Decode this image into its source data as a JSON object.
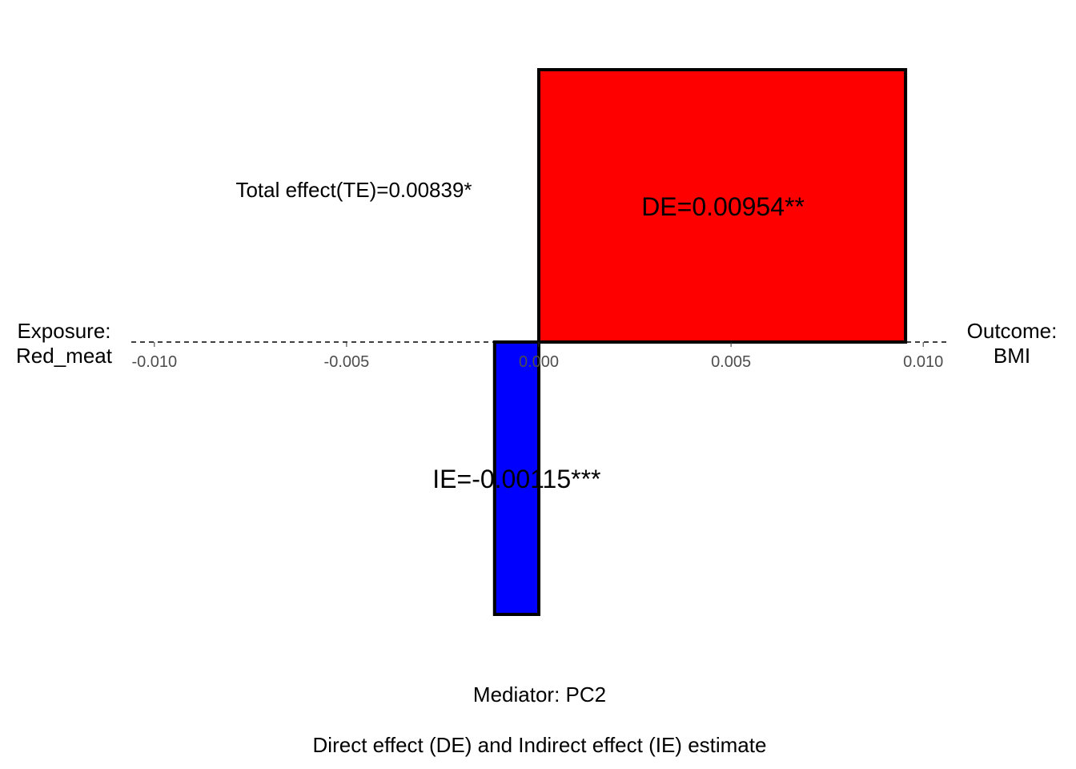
{
  "chart_data": {
    "type": "bar",
    "title": "",
    "x_ticks": [
      "-0.010",
      "-0.005",
      "0.000",
      "0.005",
      "0.010"
    ],
    "x_tick_values": [
      -0.01,
      -0.005,
      0,
      0.005,
      0.01
    ],
    "xlim": [
      -0.0106,
      0.0106
    ],
    "grid": false,
    "legend": "none",
    "bars": [
      {
        "key": "de",
        "label": "DE=0.00954**",
        "value": 0.00954,
        "direction": "up",
        "color": "#ff0000"
      },
      {
        "key": "ie",
        "label": "IE=-0.00115***",
        "value": -0.00115,
        "direction": "down",
        "color": "#0000ff"
      }
    ],
    "total_effect": {
      "label": "Total effect(TE)=0.00839*",
      "value": 0.00839
    },
    "exposure": {
      "line1": "Exposure:",
      "line2": "Red_meat"
    },
    "outcome": {
      "line1": "Outcome:",
      "line2": "BMI"
    },
    "mediator_label": "Mediator: PC2",
    "caption": "Direct effect (DE) and Indirect effect (IE) estimate"
  }
}
